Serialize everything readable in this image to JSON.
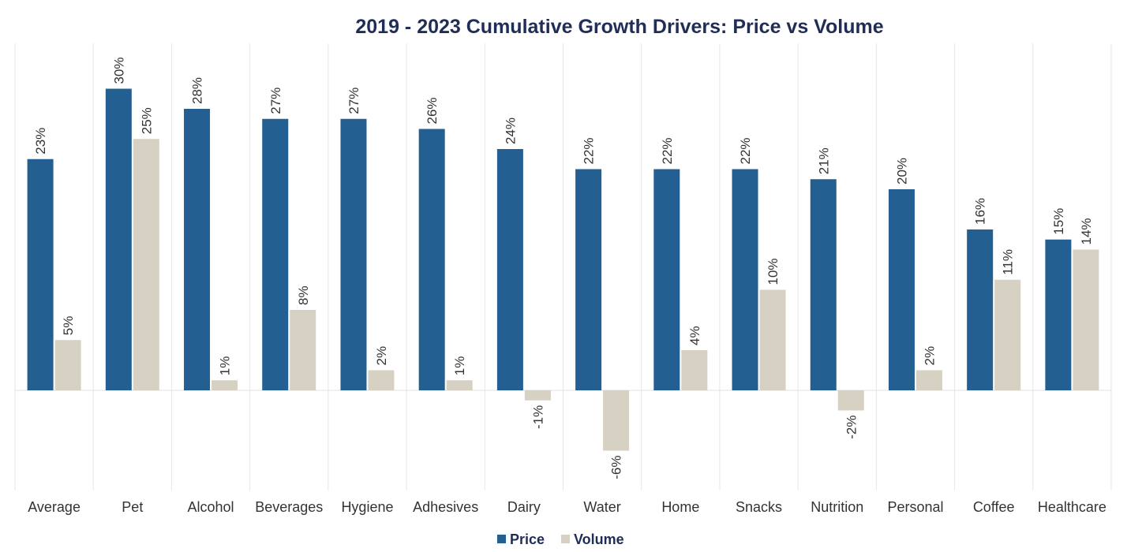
{
  "chart_data": {
    "type": "bar",
    "title": "2019 - 2023 Cumulative Growth Drivers: Price vs Volume",
    "xlabel": "",
    "ylabel": "",
    "ylim": [
      -8,
      32
    ],
    "grid": "vertical category separators",
    "legend_position": "bottom-center",
    "categories": [
      "Average",
      "Pet",
      "Alcohol",
      "Beverages",
      "Hygiene",
      "Adhesives",
      "Dairy",
      "Water",
      "Home",
      "Snacks",
      "Nutrition",
      "Personal",
      "Coffee",
      "Healthcare"
    ],
    "series": [
      {
        "name": "Price",
        "color": "#245f91",
        "values": [
          23,
          30,
          28,
          27,
          27,
          26,
          24,
          22,
          22,
          22,
          21,
          20,
          16,
          15
        ],
        "labels": [
          "23%",
          "30%",
          "28%",
          "27%",
          "27%",
          "26%",
          "24%",
          "22%",
          "22%",
          "22%",
          "21%",
          "20%",
          "16%",
          "15%"
        ]
      },
      {
        "name": "Volume",
        "color": "#d6d1c2",
        "values": [
          5,
          25,
          1,
          8,
          2,
          1,
          -1,
          -6,
          4,
          10,
          -2,
          2,
          11,
          14
        ],
        "labels": [
          "5%",
          "25%",
          "1%",
          "8%",
          "2%",
          "1%",
          "-1%",
          "-6%",
          "4%",
          "10%",
          "-2%",
          "2%",
          "11%",
          "14%"
        ]
      }
    ]
  }
}
